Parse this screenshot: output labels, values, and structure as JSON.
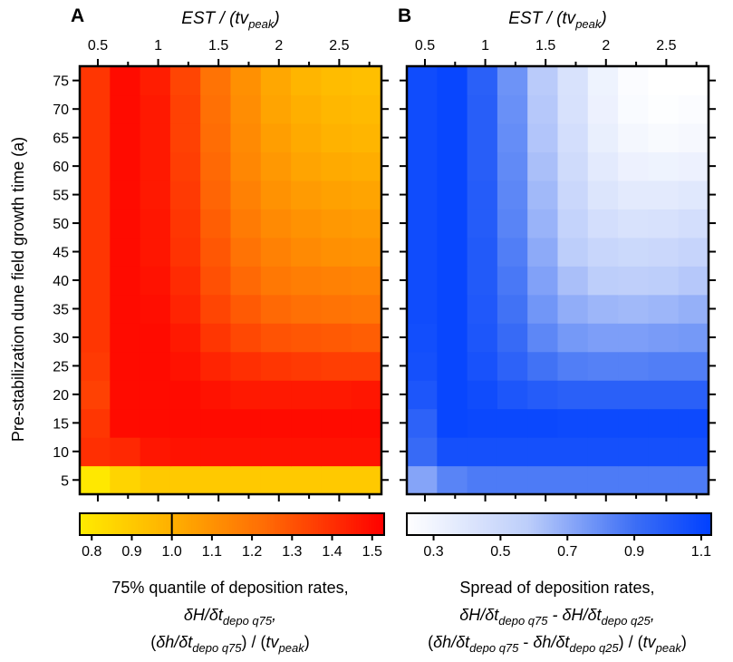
{
  "chart_data": [
    {
      "type": "heatmap",
      "panel_label": "A",
      "x_title": "EST / (tv",
      "x_title_sub": "peak",
      "x_ticks": [
        "0.5",
        "1",
        "1.5",
        "2",
        "2.5"
      ],
      "ylabel": "Pre-stabilization dune field growth time (a)",
      "y_ticks": [
        "5",
        "10",
        "15",
        "20",
        "25",
        "30",
        "35",
        "40",
        "45",
        "50",
        "55",
        "60",
        "65",
        "70",
        "75"
      ],
      "colorscale": "yellow-orange-red",
      "colorbar": {
        "ticks": [
          "0.8",
          "0.9",
          "1.0",
          "1.1",
          "1.2",
          "1.3",
          "1.4",
          "1.5"
        ],
        "range": [
          0.77,
          1.53
        ],
        "marker_value": 1.0
      },
      "caption_line1": "75% quantile of deposition rates,",
      "caption_line2": [
        {
          "t": "δH/δt",
          "i": true
        },
        {
          "t": "depo q75",
          "i": true,
          "sub": true
        },
        {
          "t": ",",
          "i": true
        }
      ],
      "caption_line3": [
        {
          "t": "(",
          "i": false
        },
        {
          "t": "δh/δt",
          "i": true
        },
        {
          "t": "depo q75",
          "i": true,
          "sub": true
        },
        {
          "t": ") / (",
          "i": false
        },
        {
          "t": "tv",
          "i": true
        },
        {
          "t": "peak",
          "i": true,
          "sub": true
        },
        {
          "t": ")",
          "i": false
        }
      ],
      "values": [
        [
          0.78,
          0.86,
          0.9,
          0.9,
          0.9,
          0.9,
          0.9,
          0.9,
          0.9,
          0.9
        ],
        [
          1.4,
          1.42,
          1.47,
          1.48,
          1.48,
          1.48,
          1.48,
          1.48,
          1.48,
          1.48
        ],
        [
          1.38,
          1.5,
          1.5,
          1.5,
          1.5,
          1.5,
          1.5,
          1.5,
          1.5,
          1.5
        ],
        [
          1.35,
          1.5,
          1.5,
          1.5,
          1.48,
          1.46,
          1.46,
          1.46,
          1.46,
          1.47
        ],
        [
          1.37,
          1.5,
          1.5,
          1.48,
          1.43,
          1.4,
          1.38,
          1.37,
          1.36,
          1.36
        ],
        [
          1.38,
          1.5,
          1.5,
          1.46,
          1.38,
          1.33,
          1.3,
          1.29,
          1.28,
          1.27
        ],
        [
          1.38,
          1.5,
          1.49,
          1.43,
          1.34,
          1.28,
          1.24,
          1.22,
          1.21,
          1.2
        ],
        [
          1.38,
          1.5,
          1.48,
          1.41,
          1.31,
          1.24,
          1.19,
          1.17,
          1.16,
          1.15
        ],
        [
          1.38,
          1.5,
          1.47,
          1.39,
          1.29,
          1.21,
          1.16,
          1.13,
          1.11,
          1.1
        ],
        [
          1.38,
          1.5,
          1.47,
          1.38,
          1.27,
          1.18,
          1.13,
          1.1,
          1.08,
          1.07
        ],
        [
          1.38,
          1.5,
          1.46,
          1.37,
          1.25,
          1.16,
          1.1,
          1.07,
          1.05,
          1.04
        ],
        [
          1.38,
          1.5,
          1.46,
          1.36,
          1.24,
          1.14,
          1.08,
          1.04,
          1.02,
          1.01
        ],
        [
          1.38,
          1.5,
          1.46,
          1.35,
          1.23,
          1.13,
          1.06,
          1.02,
          0.99,
          0.98
        ],
        [
          1.38,
          1.5,
          1.46,
          1.35,
          1.22,
          1.12,
          1.04,
          1.0,
          0.97,
          0.96
        ],
        [
          1.38,
          1.5,
          1.45,
          1.34,
          1.21,
          1.11,
          1.03,
          0.98,
          0.95,
          0.94
        ]
      ]
    },
    {
      "type": "heatmap",
      "panel_label": "B",
      "x_title": "EST / (tv",
      "x_title_sub": "peak",
      "x_ticks": [
        "0.5",
        "1",
        "1.5",
        "2",
        "2.5"
      ],
      "ylabel": "",
      "y_ticks": [
        "5",
        "10",
        "15",
        "20",
        "25",
        "30",
        "35",
        "40",
        "45",
        "50",
        "55",
        "60",
        "65",
        "70",
        "75"
      ],
      "colorscale": "white-blue",
      "colorbar": {
        "ticks": [
          "0.3",
          "0.5",
          "0.7",
          "0.9",
          "1.1"
        ],
        "range": [
          0.22,
          1.13
        ]
      },
      "caption_line1": "Spread of deposition rates,",
      "caption_line2": [
        {
          "t": "δH/δt",
          "i": true
        },
        {
          "t": "depo q75",
          "i": true,
          "sub": true
        },
        {
          "t": " - ",
          "i": true
        },
        {
          "t": "δH/δt",
          "i": true
        },
        {
          "t": "depo q25",
          "i": true,
          "sub": true
        },
        {
          "t": ",",
          "i": true
        }
      ],
      "caption_line3": [
        {
          "t": "(",
          "i": false
        },
        {
          "t": "δh/δt",
          "i": true
        },
        {
          "t": "depo q75",
          "i": true,
          "sub": true
        },
        {
          "t": " - ",
          "i": false
        },
        {
          "t": "δh/δt",
          "i": true
        },
        {
          "t": "depo q25",
          "i": true,
          "sub": true
        },
        {
          "t": ") / (",
          "i": false
        },
        {
          "t": "tv",
          "i": true
        },
        {
          "t": "peak",
          "i": true,
          "sub": true
        },
        {
          "t": ")",
          "i": false
        }
      ],
      "values": [
        [
          0.72,
          0.83,
          0.86,
          0.86,
          0.86,
          0.86,
          0.86,
          0.86,
          0.86,
          0.86
        ],
        [
          0.92,
          1.05,
          1.05,
          1.05,
          1.05,
          1.05,
          1.05,
          1.05,
          1.05,
          1.05
        ],
        [
          0.96,
          1.1,
          1.09,
          1.09,
          1.09,
          1.08,
          1.08,
          1.08,
          1.08,
          1.08
        ],
        [
          1.02,
          1.1,
          1.07,
          1.02,
          0.99,
          0.97,
          0.97,
          0.97,
          0.97,
          0.97
        ],
        [
          1.05,
          1.1,
          1.04,
          0.96,
          0.89,
          0.85,
          0.84,
          0.84,
          0.85,
          0.85
        ],
        [
          1.06,
          1.1,
          1.02,
          0.92,
          0.82,
          0.76,
          0.74,
          0.74,
          0.75,
          0.76
        ],
        [
          1.07,
          1.1,
          1.01,
          0.89,
          0.77,
          0.69,
          0.66,
          0.65,
          0.66,
          0.68
        ],
        [
          1.07,
          1.1,
          1.0,
          0.87,
          0.73,
          0.63,
          0.58,
          0.57,
          0.58,
          0.6
        ],
        [
          1.07,
          1.1,
          1.0,
          0.85,
          0.7,
          0.58,
          0.52,
          0.5,
          0.51,
          0.53
        ],
        [
          1.07,
          1.1,
          0.99,
          0.83,
          0.67,
          0.54,
          0.46,
          0.43,
          0.44,
          0.46
        ],
        [
          1.07,
          1.1,
          0.99,
          0.82,
          0.65,
          0.51,
          0.41,
          0.37,
          0.37,
          0.39
        ],
        [
          1.07,
          1.1,
          0.98,
          0.81,
          0.63,
          0.48,
          0.37,
          0.32,
          0.31,
          0.32
        ],
        [
          1.07,
          1.1,
          0.98,
          0.8,
          0.61,
          0.46,
          0.34,
          0.28,
          0.26,
          0.27
        ],
        [
          1.07,
          1.1,
          0.98,
          0.79,
          0.6,
          0.44,
          0.32,
          0.25,
          0.23,
          0.24
        ],
        [
          1.07,
          1.1,
          0.97,
          0.78,
          0.59,
          0.43,
          0.31,
          0.24,
          0.22,
          0.22
        ]
      ]
    }
  ]
}
